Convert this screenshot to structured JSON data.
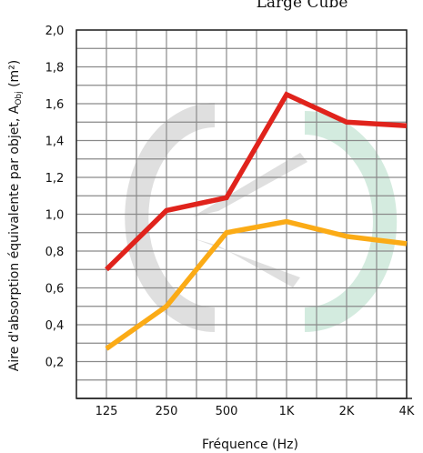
{
  "chart_data": {
    "type": "line",
    "title": "Large Cube",
    "xlabel": "Fréquence (Hz)",
    "ylabel_main": "Aire d'absorption équivalente par objet, A",
    "ylabel_sub": "Obj",
    "ylabel_unit": " (m²)",
    "categories": [
      "125",
      "250",
      "500",
      "1K",
      "2K",
      "4K"
    ],
    "y_ticks": [
      "2,0",
      "1,8",
      "1,6",
      "1,4",
      "1,2",
      "1,0",
      "0,8",
      "0,6",
      "0,4",
      "0,2"
    ],
    "ylim": [
      0,
      2.0
    ],
    "grid": true,
    "series": [
      {
        "color": "#e0231c",
        "values": [
          0.7,
          1.02,
          1.09,
          1.65,
          1.5,
          1.48
        ]
      },
      {
        "color": "#fbab16",
        "values": [
          0.27,
          0.5,
          0.9,
          0.96,
          0.88,
          0.84
        ]
      }
    ]
  }
}
